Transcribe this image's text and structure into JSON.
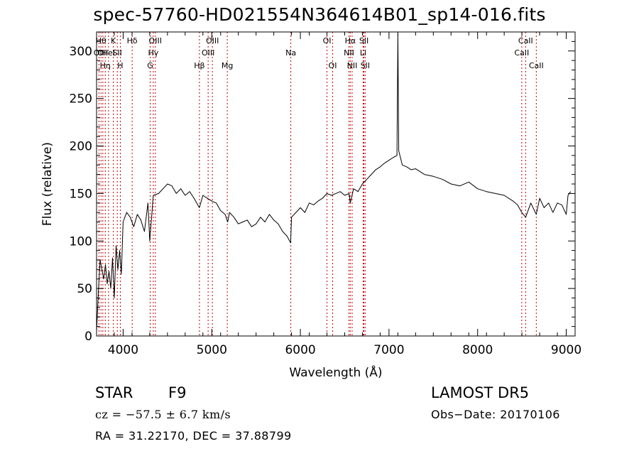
{
  "chart_data": {
    "type": "line",
    "title": "spec-57760-HD021554N364614B01_sp14-016.fits",
    "xlabel": "Wavelength (Å)",
    "ylabel": "Flux (relative)",
    "xlim": [
      3700,
      9100
    ],
    "ylim": [
      0,
      320
    ],
    "xticks": [
      4000,
      5000,
      6000,
      7000,
      8000,
      9000
    ],
    "yticks": [
      0,
      50,
      100,
      150,
      200,
      250,
      300
    ],
    "grid": false,
    "line_color": "#000000",
    "marker_line_color": "#c00000",
    "series": [
      {
        "values_x": [
          3700,
          3720,
          3740,
          3760,
          3780,
          3800,
          3820,
          3840,
          3860,
          3880,
          3900,
          3920,
          3940,
          3960,
          3980,
          4000,
          4040,
          4080,
          4120,
          4160,
          4200,
          4240,
          4280,
          4300,
          4340,
          4400,
          4450,
          4500,
          4550,
          4600,
          4650,
          4700,
          4750,
          4800,
          4860,
          4900,
          4950,
          5000,
          5050,
          5100,
          5150,
          5180,
          5200,
          5250,
          5300,
          5350,
          5400,
          5450,
          5500,
          5550,
          5600,
          5650,
          5700,
          5750,
          5800,
          5850,
          5890,
          5900,
          5950,
          6000,
          6050,
          6100,
          6150,
          6200,
          6250,
          6300,
          6350,
          6400,
          6450,
          6500,
          6550,
          6563,
          6600,
          6650,
          6700,
          6750,
          6800,
          6850,
          6900,
          6950,
          7000,
          7050,
          7090,
          7100,
          7110,
          7150,
          7200,
          7250,
          7300,
          7400,
          7500,
          7600,
          7700,
          7800,
          7900,
          8000,
          8100,
          8200,
          8300,
          8400,
          8450,
          8498,
          8542,
          8600,
          8662,
          8700,
          8750,
          8800,
          8850,
          8900,
          8950,
          9000,
          9020,
          9050
        ],
        "values_y": [
          5,
          45,
          80,
          70,
          60,
          75,
          55,
          68,
          50,
          82,
          40,
          95,
          70,
          90,
          65,
          120,
          130,
          125,
          115,
          128,
          122,
          110,
          140,
          100,
          148,
          150,
          155,
          160,
          158,
          150,
          155,
          148,
          152,
          145,
          135,
          148,
          145,
          142,
          140,
          132,
          128,
          120,
          130,
          125,
          118,
          120,
          122,
          115,
          118,
          125,
          120,
          128,
          122,
          118,
          110,
          105,
          98,
          125,
          130,
          135,
          130,
          140,
          138,
          142,
          145,
          150,
          148,
          150,
          152,
          148,
          150,
          140,
          155,
          152,
          160,
          165,
          170,
          175,
          178,
          182,
          185,
          188,
          190,
          318,
          195,
          180,
          178,
          175,
          176,
          170,
          168,
          165,
          160,
          158,
          162,
          155,
          152,
          150,
          148,
          142,
          138,
          130,
          125,
          140,
          128,
          145,
          135,
          140,
          130,
          140,
          138,
          128,
          148,
          152
        ]
      }
    ],
    "line_markers": [
      {
        "x": 3727,
        "label": "OII",
        "row": 2
      },
      {
        "x": 3750,
        "label": "Hθ",
        "row": 1
      },
      {
        "x": 3771,
        "label": "OII",
        "row": 2
      },
      {
        "x": 3798,
        "label": "Hη",
        "row": 3
      },
      {
        "x": 3835,
        "label": "HeI",
        "row": 2
      },
      {
        "x": 3889,
        "label": "K",
        "row": 1
      },
      {
        "x": 3934,
        "label": "SII",
        "row": 2
      },
      {
        "x": 3968,
        "label": "H",
        "row": 3
      },
      {
        "x": 4102,
        "label": "Hδ",
        "row": 1
      },
      {
        "x": 4305,
        "label": "G",
        "row": 3
      },
      {
        "x": 4340,
        "label": "Hγ",
        "row": 2
      },
      {
        "x": 4363,
        "label": "OIII",
        "row": 1
      },
      {
        "x": 4861,
        "label": "Hβ",
        "row": 3
      },
      {
        "x": 4959,
        "label": "OIII",
        "row": 2
      },
      {
        "x": 5007,
        "label": "OIII",
        "row": 1
      },
      {
        "x": 5175,
        "label": "Mg",
        "row": 3
      },
      {
        "x": 5892,
        "label": "Na",
        "row": 2
      },
      {
        "x": 6300,
        "label": "OI",
        "row": 1
      },
      {
        "x": 6364,
        "label": "OI",
        "row": 3
      },
      {
        "x": 6548,
        "label": "NII",
        "row": 2
      },
      {
        "x": 6563,
        "label": "Hα",
        "row": 1
      },
      {
        "x": 6584,
        "label": "NII",
        "row": 3
      },
      {
        "x": 6708,
        "label": "Li",
        "row": 2
      },
      {
        "x": 6717,
        "label": "SII",
        "row": 1
      },
      {
        "x": 6731,
        "label": "SII",
        "row": 3
      },
      {
        "x": 8498,
        "label": "CaII",
        "row": 2
      },
      {
        "x": 8542,
        "label": "CaII",
        "row": 1
      },
      {
        "x": 8662,
        "label": "CaII",
        "row": 3
      }
    ]
  },
  "info": {
    "object_class": "STAR",
    "subclass": "F9",
    "survey": "LAMOST DR5",
    "redshift_text": "cz = −57.5 ± 6.7 km/s",
    "obs_date_text": "Obs−Date: 20170106",
    "coords_text": "RA =  31.22170, DEC =  37.88799"
  }
}
